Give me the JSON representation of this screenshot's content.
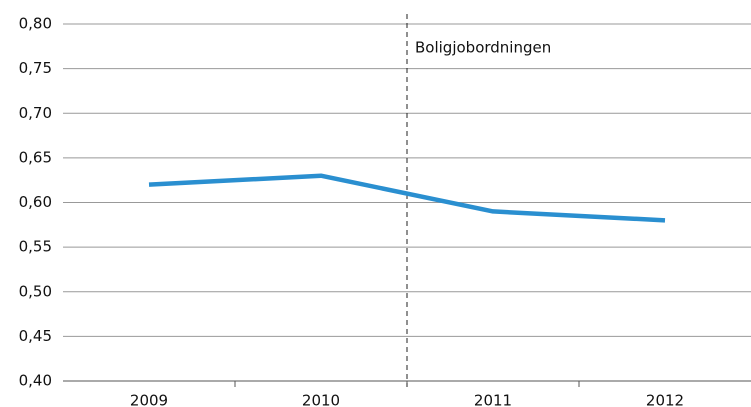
{
  "chart_data": {
    "type": "line",
    "categories": [
      "2009",
      "2010",
      "2011",
      "2012"
    ],
    "series": [
      {
        "name": null,
        "color": "#2a8fd0",
        "values": [
          0.62,
          0.63,
          0.59,
          0.58
        ]
      }
    ],
    "ylim": [
      0.4,
      0.8
    ],
    "yticks": [
      {
        "value": 0.4,
        "label": "0,40"
      },
      {
        "value": 0.45,
        "label": "0,45"
      },
      {
        "value": 0.5,
        "label": "0,50"
      },
      {
        "value": 0.55,
        "label": "0,55"
      },
      {
        "value": 0.6,
        "label": "0,60"
      },
      {
        "value": 0.65,
        "label": "0,65"
      },
      {
        "value": 0.7,
        "label": "0,70"
      },
      {
        "value": 0.75,
        "label": "0,75"
      },
      {
        "value": 0.8,
        "label": "0,80"
      }
    ],
    "grid": true,
    "annotation": "Boligjobordningen"
  }
}
